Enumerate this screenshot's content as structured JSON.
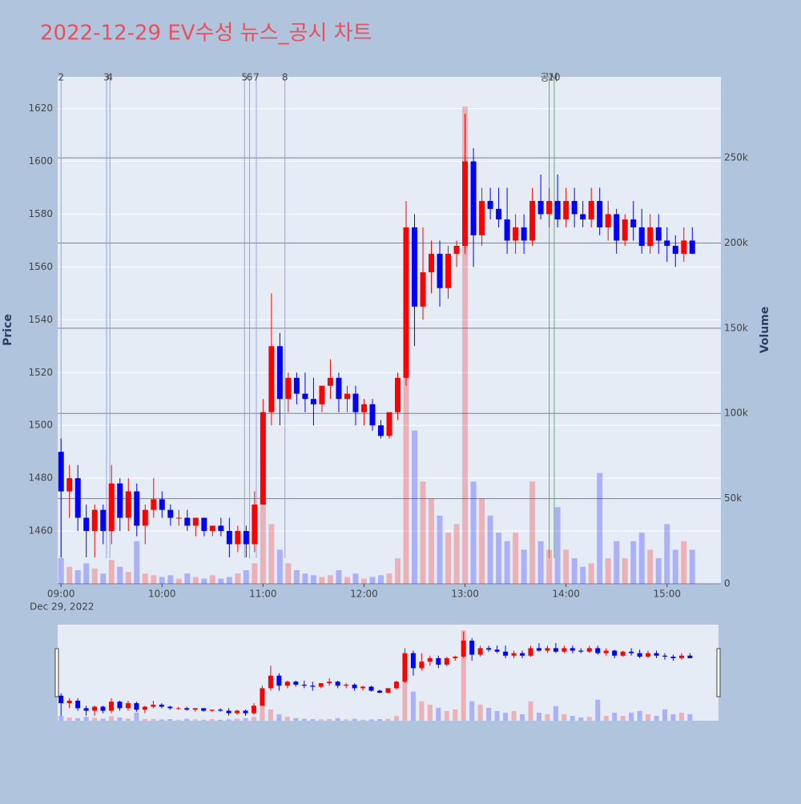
{
  "chart_data": {
    "type": "candlestick",
    "title": "2022-12-29 EV수성 뉴스_공시 차트",
    "y_label": "Price",
    "y2_label": "Volume",
    "date_label": "Dec 29, 2022",
    "increasing_color": "#ff0000",
    "decreasing_color": "#0000ff",
    "grid": true,
    "xlim": [
      "08:58",
      "15:32"
    ],
    "xticks": [
      "09:00",
      "10:00",
      "11:00",
      "12:00",
      "13:00",
      "14:00",
      "15:00"
    ],
    "ylim": [
      1440,
      1632
    ],
    "yticks": [
      1460,
      1480,
      1500,
      1520,
      1540,
      1560,
      1580,
      1600,
      1620
    ],
    "y2lim": [
      0,
      297500
    ],
    "y2ticks": [
      0,
      {
        "value": 50000,
        "label": "50k"
      },
      {
        "value": 100000,
        "label": "100k"
      },
      {
        "value": 150000,
        "label": "150k"
      },
      {
        "value": 200000,
        "label": "200k"
      },
      {
        "value": 250000,
        "label": "250k"
      }
    ],
    "annotations": [
      {
        "x": "09:00",
        "text": "2",
        "color": "#8fa3e8"
      },
      {
        "x": "09:27",
        "text": "3",
        "color": "#8fa3e8"
      },
      {
        "x": "09:29",
        "text": "4",
        "color": "#8fa3e8"
      },
      {
        "x": "10:49",
        "text": "5",
        "color": "#8fa3e8"
      },
      {
        "x": "10:52",
        "text": "6",
        "color": "#8fa3e8"
      },
      {
        "x": "10:56",
        "text": "7",
        "color": "#8fa3e8"
      },
      {
        "x": "11:13",
        "text": "8",
        "color": "#8fa3e8"
      },
      {
        "x": "13:50",
        "text": "공시",
        "color": "#5fae6e"
      },
      {
        "x": "13:53",
        "text": "10",
        "color": "#5fae6e"
      }
    ],
    "x": [
      "09:00",
      "09:05",
      "09:10",
      "09:15",
      "09:20",
      "09:25",
      "09:30",
      "09:35",
      "09:40",
      "09:45",
      "09:50",
      "09:55",
      "10:00",
      "10:05",
      "10:10",
      "10:15",
      "10:20",
      "10:25",
      "10:30",
      "10:35",
      "10:40",
      "10:45",
      "10:50",
      "10:55",
      "11:00",
      "11:05",
      "11:10",
      "11:15",
      "11:20",
      "11:25",
      "11:30",
      "11:35",
      "11:40",
      "11:45",
      "11:50",
      "11:55",
      "12:00",
      "12:05",
      "12:10",
      "12:15",
      "12:20",
      "12:25",
      "12:30",
      "12:35",
      "12:40",
      "12:45",
      "12:50",
      "12:55",
      "13:00",
      "13:05",
      "13:10",
      "13:15",
      "13:20",
      "13:25",
      "13:30",
      "13:35",
      "13:40",
      "13:45",
      "13:50",
      "13:55",
      "14:00",
      "14:05",
      "14:10",
      "14:15",
      "14:20",
      "14:25",
      "14:30",
      "14:35",
      "14:40",
      "14:45",
      "14:50",
      "14:55",
      "15:00",
      "15:05",
      "15:10",
      "15:15"
    ],
    "open": [
      1490,
      1475,
      1480,
      1465,
      1460,
      1468,
      1460,
      1478,
      1465,
      1475,
      1462,
      1468,
      1472,
      1468,
      1465,
      1465,
      1462,
      1465,
      1460,
      1462,
      1460,
      1455,
      1460,
      1455,
      1470,
      1505,
      1530,
      1510,
      1518,
      1512,
      1510,
      1508,
      1515,
      1518,
      1510,
      1512,
      1505,
      1508,
      1500,
      1496,
      1505,
      1518,
      1575,
      1545,
      1558,
      1565,
      1552,
      1565,
      1568,
      1600,
      1572,
      1585,
      1582,
      1578,
      1570,
      1575,
      1570,
      1585,
      1580,
      1585,
      1578,
      1585,
      1580,
      1578,
      1585,
      1575,
      1580,
      1570,
      1578,
      1575,
      1568,
      1575,
      1570,
      1568,
      1565,
      1570
    ],
    "high": [
      1495,
      1485,
      1485,
      1470,
      1470,
      1470,
      1485,
      1480,
      1480,
      1478,
      1470,
      1480,
      1475,
      1470,
      1468,
      1468,
      1465,
      1465,
      1462,
      1465,
      1465,
      1462,
      1462,
      1475,
      1510,
      1550,
      1535,
      1520,
      1520,
      1520,
      1518,
      1515,
      1525,
      1520,
      1515,
      1515,
      1510,
      1510,
      1502,
      1505,
      1520,
      1585,
      1580,
      1575,
      1570,
      1570,
      1568,
      1570,
      1618,
      1605,
      1590,
      1590,
      1590,
      1590,
      1580,
      1580,
      1590,
      1595,
      1590,
      1595,
      1590,
      1590,
      1585,
      1590,
      1590,
      1585,
      1582,
      1580,
      1585,
      1582,
      1580,
      1580,
      1575,
      1572,
      1575,
      1575
    ],
    "low": [
      1450,
      1465,
      1460,
      1450,
      1450,
      1455,
      1455,
      1460,
      1460,
      1458,
      1455,
      1465,
      1465,
      1462,
      1462,
      1460,
      1458,
      1458,
      1458,
      1458,
      1450,
      1452,
      1450,
      1452,
      1470,
      1500,
      1500,
      1505,
      1508,
      1505,
      1500,
      1505,
      1510,
      1505,
      1505,
      1500,
      1500,
      1498,
      1495,
      1495,
      1502,
      1515,
      1530,
      1540,
      1550,
      1545,
      1548,
      1560,
      1565,
      1560,
      1568,
      1578,
      1575,
      1565,
      1565,
      1565,
      1568,
      1578,
      1575,
      1575,
      1575,
      1575,
      1575,
      1575,
      1572,
      1570,
      1565,
      1568,
      1570,
      1565,
      1565,
      1565,
      1562,
      1560,
      1562,
      1565
    ],
    "close": [
      1475,
      1480,
      1465,
      1460,
      1468,
      1460,
      1478,
      1465,
      1475,
      1462,
      1468,
      1472,
      1468,
      1465,
      1465,
      1462,
      1465,
      1460,
      1462,
      1460,
      1455,
      1460,
      1455,
      1470,
      1505,
      1530,
      1510,
      1518,
      1512,
      1510,
      1508,
      1515,
      1518,
      1510,
      1512,
      1505,
      1508,
      1500,
      1496,
      1505,
      1518,
      1575,
      1545,
      1558,
      1565,
      1552,
      1565,
      1568,
      1600,
      1572,
      1585,
      1582,
      1578,
      1570,
      1575,
      1570,
      1585,
      1580,
      1585,
      1578,
      1585,
      1580,
      1578,
      1585,
      1575,
      1580,
      1570,
      1578,
      1575,
      1568,
      1575,
      1570,
      1568,
      1565,
      1570,
      1565
    ],
    "volume": [
      15000,
      10000,
      8000,
      12000,
      9000,
      6000,
      14000,
      10000,
      7000,
      25000,
      6000,
      5000,
      4000,
      5000,
      3000,
      6000,
      4000,
      3000,
      5000,
      3000,
      4000,
      6000,
      8000,
      12000,
      70000,
      35000,
      20000,
      12000,
      8000,
      6000,
      5000,
      4000,
      5000,
      8000,
      4000,
      6000,
      3000,
      4000,
      5000,
      6000,
      15000,
      140000,
      90000,
      60000,
      50000,
      40000,
      30000,
      35000,
      280000,
      60000,
      50000,
      40000,
      30000,
      25000,
      30000,
      20000,
      60000,
      25000,
      20000,
      45000,
      20000,
      15000,
      10000,
      12000,
      65000,
      15000,
      25000,
      15000,
      25000,
      30000,
      20000,
      15000,
      35000,
      20000,
      25000,
      20000
    ]
  }
}
